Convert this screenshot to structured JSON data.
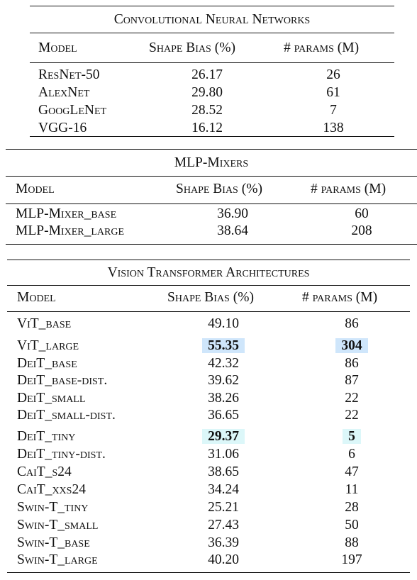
{
  "cnn": {
    "title": "Convolutional Neural Networks",
    "headers": [
      "Model",
      "Shape Bias (%)",
      "# params (M)"
    ],
    "rows": [
      {
        "model": "ResNet-50",
        "shape_bias": "26.17",
        "params": "26"
      },
      {
        "model": "AlexNet",
        "shape_bias": "29.80",
        "params": "61"
      },
      {
        "model": "GoogLeNet",
        "shape_bias": "28.52",
        "params": "7"
      },
      {
        "model": "VGG-16",
        "shape_bias": "16.12",
        "params": "138"
      }
    ]
  },
  "mlp": {
    "title": "MLP-Mixers",
    "headers": [
      "Model",
      "Shape Bias (%)",
      "# params (M)"
    ],
    "rows": [
      {
        "model": "MLP-Mixer_base",
        "shape_bias": "36.90",
        "params": "60"
      },
      {
        "model": "MLP-Mixer_large",
        "shape_bias": "38.64",
        "params": "208"
      }
    ]
  },
  "vit": {
    "title": "Vision Transformer Architectures",
    "headers": [
      "Model",
      "Shape Bias (%)",
      "# params (M)"
    ],
    "rows": [
      {
        "model": "ViT_base",
        "shape_bias": "49.10",
        "params": "86"
      },
      {
        "model": "ViT_large",
        "shape_bias": "55.35",
        "params": "304",
        "highlight": "blue"
      },
      {
        "model": "DeiT_base",
        "shape_bias": "42.32",
        "params": "86"
      },
      {
        "model": "DeiT_base-dist.",
        "shape_bias": "39.62",
        "params": "87"
      },
      {
        "model": "DeiT_small",
        "shape_bias": "38.26",
        "params": "22"
      },
      {
        "model": "DeiT_small-dist.",
        "shape_bias": "36.65",
        "params": "22"
      },
      {
        "model": "DeiT_tiny",
        "shape_bias": "29.37",
        "params": "5",
        "highlight": "cyan"
      },
      {
        "model": "DeiT_tiny-dist.",
        "shape_bias": "31.06",
        "params": "6"
      },
      {
        "model": "CaiT_s24",
        "shape_bias": "38.65",
        "params": "47"
      },
      {
        "model": "CaiT_xxs24",
        "shape_bias": "34.24",
        "params": "11"
      },
      {
        "model": "Swin-T_tiny",
        "shape_bias": "25.21",
        "params": "28"
      },
      {
        "model": "Swin-T_small",
        "shape_bias": "27.43",
        "params": "50"
      },
      {
        "model": "Swin-T_base",
        "shape_bias": "36.39",
        "params": "88"
      },
      {
        "model": "Swin-T_large",
        "shape_bias": "40.20",
        "params": "197"
      }
    ]
  },
  "colors": {
    "highlight_blue": "#cfe6fb",
    "highlight_cyan": "#dcf7f9"
  }
}
